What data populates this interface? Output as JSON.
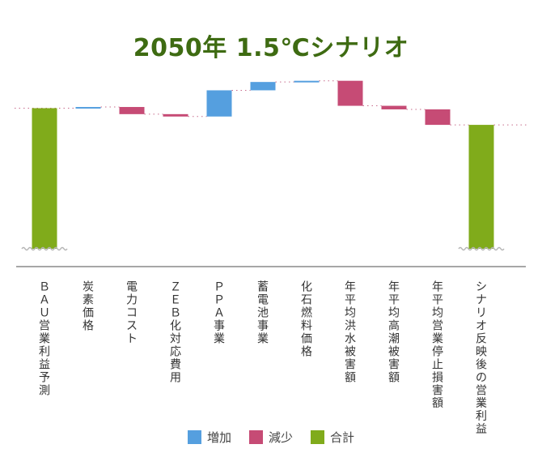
{
  "title": "2050年 1.5℃シナリオ",
  "colors": {
    "increase": "#559fdf",
    "decrease": "#c64b75",
    "total": "#80ab1b"
  },
  "legend": [
    {
      "key": "increase",
      "label": "増加"
    },
    {
      "key": "decrease",
      "label": "減少"
    },
    {
      "key": "total",
      "label": "合計"
    }
  ],
  "chart_data": {
    "type": "bar",
    "subtype": "waterfall",
    "broken_axis": true,
    "categories": [
      "ＢＡＵ営業利益予測",
      "炭素価格",
      "電力コスト",
      "ＺＥＢ化対応費用",
      "ＰＰＡ事業",
      "蓄電池事業",
      "化石燃料価格",
      "年平均洪水被害額",
      "年平均高潮被害額",
      "年平均営業停止損害額",
      "シナリオ反映後の営業利益"
    ],
    "kinds": [
      "total",
      "increase",
      "decrease",
      "decrease",
      "increase",
      "increase",
      "increase",
      "decrease",
      "decrease",
      "decrease",
      "total"
    ],
    "values": [
      100,
      1,
      -6,
      -2,
      22,
      7,
      1,
      -21,
      -3,
      -13,
      86
    ],
    "grid": false,
    "legend_position": "bottom"
  }
}
